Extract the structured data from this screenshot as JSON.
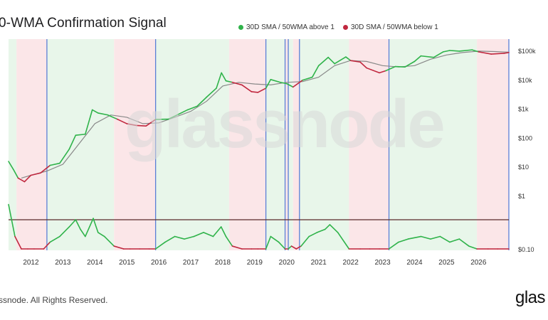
{
  "title": "0-WMA Confirmation Signal",
  "footer": "ssnode. All Rights Reserved.",
  "brand": "glas",
  "watermark": "glassnode",
  "colors": {
    "above": "#2fb34a",
    "below": "#c0283f",
    "greenZone": "#e8f6ea",
    "redZone": "#fbe6e8",
    "divider": "#5b7fd6",
    "sma": "#888888",
    "baseline": "#5a2a2a"
  },
  "chart_data": {
    "type": "line",
    "legend": [
      {
        "name": "30D SMA / 50WMA above 1",
        "color": "#2fb34a"
      },
      {
        "name": "30D SMA / 50WMA below 1",
        "color": "#c0283f"
      }
    ],
    "x_ticks": [
      "2012",
      "2013",
      "2014",
      "2015",
      "2016",
      "2017",
      "2018",
      "2019",
      "2020",
      "2021",
      "2022",
      "2023",
      "2024",
      "2025",
      "2026"
    ],
    "y_axis_right": {
      "scale": "log",
      "ticks": [
        "$100k",
        "$10k",
        "$1k",
        "$100",
        "$10",
        "$1",
        "$0.10"
      ],
      "tick_values": [
        100000,
        10000,
        1000,
        100,
        10,
        1,
        0.1
      ]
    },
    "x_range": [
      2011.3,
      2026.95
    ],
    "regimes": [
      {
        "start": 2011.3,
        "end": 2011.55,
        "state": "above"
      },
      {
        "start": 2011.55,
        "end": 2012.5,
        "state": "below"
      },
      {
        "start": 2012.5,
        "end": 2014.6,
        "state": "above"
      },
      {
        "start": 2014.6,
        "end": 2015.9,
        "state": "below"
      },
      {
        "start": 2015.9,
        "end": 2018.2,
        "state": "above"
      },
      {
        "start": 2018.2,
        "end": 2019.35,
        "state": "below"
      },
      {
        "start": 2019.35,
        "end": 2019.95,
        "state": "above"
      },
      {
        "start": 2019.95,
        "end": 2020.05,
        "state": "below"
      },
      {
        "start": 2020.05,
        "end": 2020.2,
        "state": "above"
      },
      {
        "start": 2020.2,
        "end": 2020.4,
        "state": "below"
      },
      {
        "start": 2020.4,
        "end": 2021.95,
        "state": "above"
      },
      {
        "start": 2021.95,
        "end": 2023.2,
        "state": "below"
      },
      {
        "start": 2023.2,
        "end": 2025.95,
        "state": "above"
      },
      {
        "start": 2025.95,
        "end": 2026.95,
        "state": "below"
      }
    ],
    "dividers": [
      2012.5,
      2015.9,
      2019.35,
      2019.95,
      2020.05,
      2020.4,
      2023.2,
      2026.95
    ],
    "price": {
      "x": [
        2011.3,
        2011.45,
        2011.6,
        2011.8,
        2012.0,
        2012.3,
        2012.6,
        2012.9,
        2013.2,
        2013.4,
        2013.7,
        2013.92,
        2014.1,
        2014.4,
        2014.7,
        2015.0,
        2015.3,
        2015.6,
        2015.9,
        2016.3,
        2016.6,
        2016.9,
        2017.2,
        2017.5,
        2017.8,
        2017.96,
        2018.1,
        2018.3,
        2018.6,
        2018.9,
        2019.1,
        2019.35,
        2019.5,
        2019.8,
        2020.0,
        2020.2,
        2020.5,
        2020.8,
        2021.0,
        2021.3,
        2021.5,
        2021.85,
        2022.0,
        2022.3,
        2022.5,
        2022.9,
        2023.1,
        2023.4,
        2023.7,
        2024.0,
        2024.2,
        2024.6,
        2024.9,
        2025.1,
        2025.4,
        2025.8,
        2026.0,
        2026.4,
        2026.8,
        2026.95
      ],
      "y": [
        15,
        8,
        4,
        3,
        5,
        6,
        11,
        13,
        40,
        120,
        130,
        900,
        700,
        600,
        430,
        300,
        260,
        250,
        420,
        430,
        620,
        900,
        1200,
        2500,
        5000,
        17000,
        9000,
        8000,
        6500,
        3800,
        3600,
        5000,
        10000,
        8000,
        7200,
        5500,
        9500,
        12000,
        30000,
        58000,
        35000,
        60000,
        45000,
        40000,
        25000,
        17000,
        20000,
        28000,
        27000,
        42000,
        65000,
        58000,
        90000,
        100000,
        95000,
        105000,
        90000,
        75000,
        80000,
        85000
      ]
    },
    "sma": {
      "x": [
        2011.7,
        2012.0,
        2012.5,
        2013.0,
        2013.5,
        2014.0,
        2014.5,
        2015.0,
        2015.5,
        2016.0,
        2016.5,
        2017.0,
        2017.5,
        2018.0,
        2018.5,
        2019.0,
        2019.5,
        2020.0,
        2020.5,
        2021.0,
        2021.5,
        2022.0,
        2022.5,
        2023.0,
        2023.5,
        2024.0,
        2024.5,
        2025.0,
        2025.5,
        2026.0,
        2026.5,
        2026.95
      ],
      "y": [
        4,
        5,
        7,
        12,
        60,
        300,
        600,
        500,
        300,
        320,
        500,
        800,
        1800,
        6000,
        8000,
        7000,
        6500,
        8000,
        8500,
        12000,
        30000,
        45000,
        42000,
        30000,
        27000,
        30000,
        50000,
        70000,
        85000,
        95000,
        92000,
        88000
      ]
    },
    "ratio": {
      "x": [
        2011.3,
        2011.5,
        2011.7,
        2011.9,
        2012.1,
        2012.4,
        2012.6,
        2012.9,
        2013.2,
        2013.4,
        2013.55,
        2013.7,
        2013.95,
        2014.1,
        2014.3,
        2014.6,
        2014.9,
        2015.1,
        2015.4,
        2015.7,
        2015.9,
        2016.2,
        2016.5,
        2016.8,
        2017.1,
        2017.4,
        2017.7,
        2017.95,
        2018.1,
        2018.3,
        2018.6,
        2018.9,
        2019.1,
        2019.35,
        2019.5,
        2019.75,
        2019.95,
        2020.05,
        2020.15,
        2020.3,
        2020.45,
        2020.7,
        2020.95,
        2021.2,
        2021.35,
        2021.6,
        2021.95,
        2022.3,
        2022.6,
        2022.9,
        2023.2,
        2023.5,
        2023.8,
        2024.2,
        2024.5,
        2024.8,
        2025.1,
        2025.4,
        2025.7,
        2025.95,
        2026.3,
        2026.6,
        2026.95
      ],
      "y": [
        3,
        0.3,
        0.06,
        0.05,
        0.06,
        0.07,
        0.2,
        0.3,
        0.6,
        1.0,
        0.5,
        0.3,
        1.1,
        0.4,
        0.3,
        0.15,
        0.05,
        0.04,
        0.05,
        0.07,
        0.1,
        0.2,
        0.3,
        0.25,
        0.3,
        0.4,
        0.3,
        0.6,
        0.3,
        0.15,
        0.05,
        0.04,
        0.05,
        0.1,
        0.3,
        0.2,
        0.1,
        0.08,
        0.15,
        0.1,
        0.15,
        0.3,
        0.4,
        0.5,
        0.7,
        0.4,
        0.1,
        0.06,
        0.04,
        0.04,
        0.1,
        0.2,
        0.25,
        0.3,
        0.25,
        0.3,
        0.2,
        0.25,
        0.15,
        0.1,
        0.07,
        0.05,
        0.08
      ]
    },
    "ratio_baseline": 1
  }
}
